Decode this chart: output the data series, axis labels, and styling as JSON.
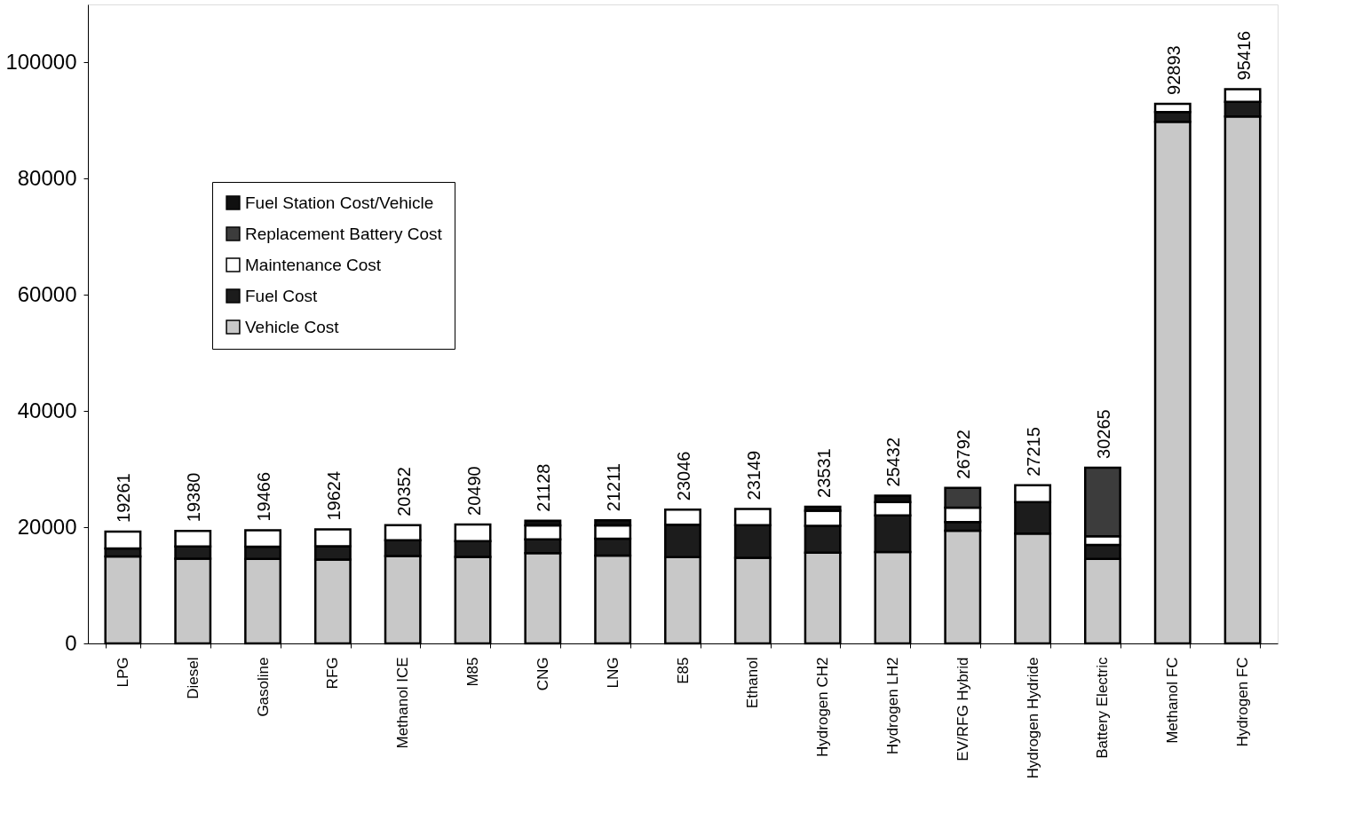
{
  "chart_data": {
    "type": "bar",
    "stacked": true,
    "categories": [
      "LPG",
      "Diesel",
      "Gasoline",
      "RFG",
      "Methanol ICE",
      "M85",
      "CNG",
      "LNG",
      "E85",
      "Ethanol",
      "Hydrogen CH2",
      "Hydrogen LH2",
      "EV/RFG Hybrid",
      "Hydrogen Hydride",
      "Battery Electric",
      "Methanol FC",
      "Hydrogen FC"
    ],
    "series": [
      {
        "name": "Vehicle Cost",
        "color": "#c8c8c8",
        "values": [
          14961,
          14580,
          14566,
          14424,
          15052,
          14890,
          15528,
          15111,
          14846,
          14749,
          15631,
          15732,
          19392,
          18915,
          14565,
          89793,
          90716
        ]
      },
      {
        "name": "Fuel Cost",
        "color": "#1c1c1c",
        "values": [
          1400,
          2100,
          2100,
          2300,
          2700,
          2700,
          2400,
          2900,
          5600,
          5600,
          4600,
          6300,
          1500,
          5400,
          2400,
          1700,
          2500
        ]
      },
      {
        "name": "Maintenance Cost",
        "color": "#ffffff",
        "values": [
          2900,
          2700,
          2800,
          2900,
          2600,
          2900,
          2400,
          2300,
          2600,
          2800,
          2600,
          2300,
          2500,
          2900,
          1500,
          1400,
          2200
        ]
      },
      {
        "name": "Replacement Battery Cost",
        "color": "#3c3c3c",
        "values": [
          null,
          null,
          null,
          null,
          null,
          null,
          null,
          null,
          null,
          null,
          null,
          null,
          3400,
          null,
          11800,
          null,
          null
        ]
      },
      {
        "name": "Fuel Station Cost/Vehicle",
        "color": "#101010",
        "values": [
          null,
          null,
          null,
          null,
          null,
          null,
          800,
          900,
          null,
          null,
          700,
          1100,
          null,
          null,
          null,
          null,
          null
        ]
      }
    ],
    "totals": [
      "19261",
      "19380",
      "19466",
      "19624",
      "20352",
      "20490",
      "21128",
      "21211",
      "23046",
      "23149",
      "23531",
      "25432",
      "26792",
      "27215",
      "30265",
      "92893",
      "95416"
    ],
    "ylim": [
      0,
      110000
    ],
    "yticks": [
      0,
      20000,
      40000,
      60000,
      80000,
      100000
    ],
    "grid": false,
    "legend": "top left"
  }
}
